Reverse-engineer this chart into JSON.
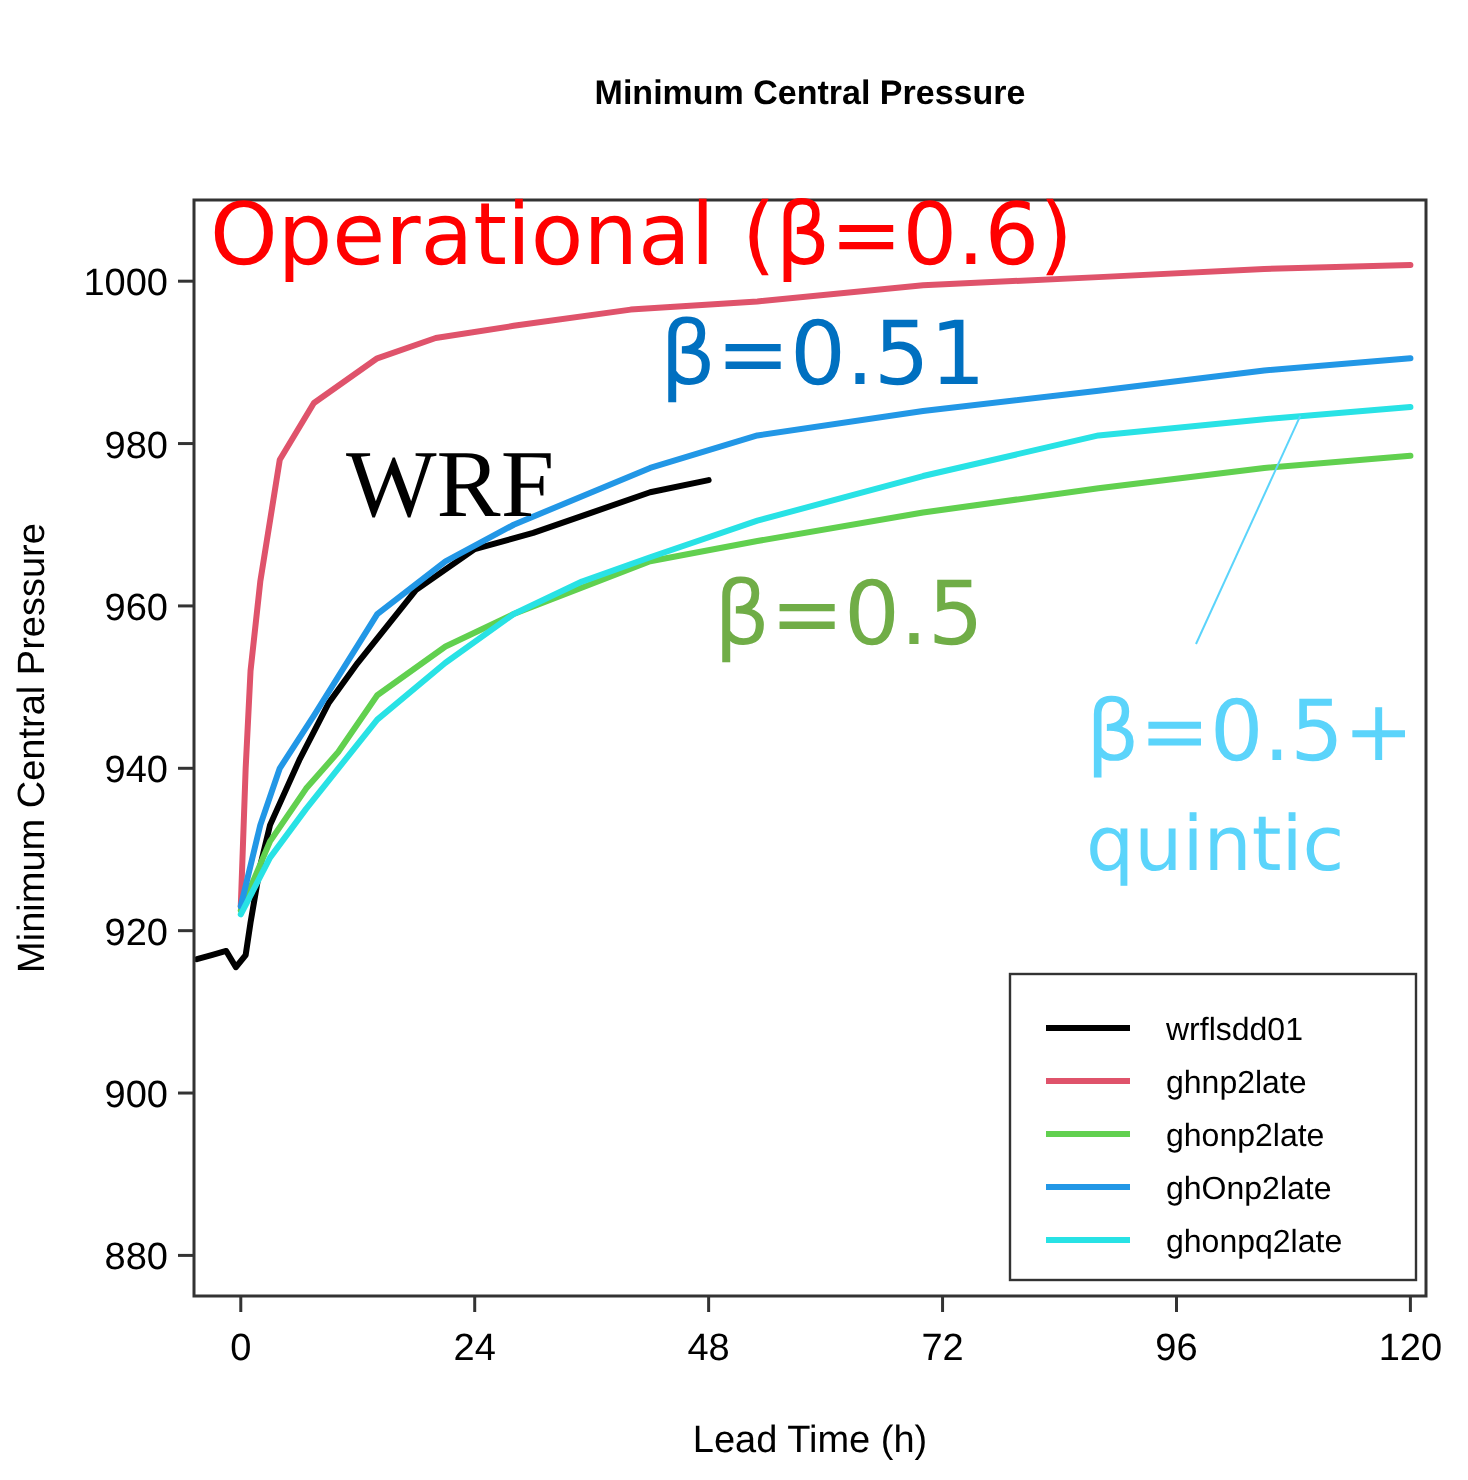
{
  "chart_data": {
    "type": "line",
    "title": "Minimum Central Pressure",
    "xlabel": "Lead Time (h)",
    "ylabel": "Minimum Central Pressure",
    "xlim": [
      -4.8,
      121.6
    ],
    "ylim": [
      875,
      1010
    ],
    "xticks": [
      0,
      24,
      48,
      72,
      96,
      120
    ],
    "yticks": [
      880,
      900,
      920,
      940,
      960,
      980,
      1000
    ],
    "grid": false,
    "legend": "bottom right",
    "line_style": "solid",
    "marker": "none",
    "series": [
      {
        "name": "wrflsdd01",
        "color": "#000000",
        "x": [
          -4.5,
          -3,
          -1.5,
          -0.5,
          0.5,
          1,
          2,
          3,
          6,
          9,
          12,
          18,
          24,
          30,
          36,
          42,
          48
        ],
        "values": [
          916.5,
          917,
          917.5,
          915.5,
          917,
          921,
          928,
          933,
          941,
          948,
          953,
          962,
          967,
          969,
          971.5,
          974,
          975.5
        ]
      },
      {
        "name": "ghnp2late",
        "color": "#df536b",
        "x": [
          0,
          0.5,
          1,
          2,
          4,
          7.5,
          14,
          20,
          28,
          40,
          53,
          70,
          88,
          105,
          120
        ],
        "values": [
          923,
          940,
          952,
          963,
          978,
          985,
          990.5,
          993,
          994.5,
          996.5,
          997.5,
          999.5,
          1000.5,
          1001.5,
          1002
        ]
      },
      {
        "name": "ghonp2late",
        "color": "#61d04f",
        "x": [
          0,
          3,
          6.7,
          10,
          14,
          21,
          28,
          42,
          53,
          70,
          88,
          105,
          120
        ],
        "values": [
          922.5,
          931,
          937.5,
          942,
          949,
          955,
          959,
          965.5,
          968,
          971.5,
          974.5,
          977,
          978.5
        ]
      },
      {
        "name": "ghOnp2late",
        "color": "#2297e6",
        "x": [
          0,
          2,
          4,
          7.5,
          14,
          21,
          28,
          42,
          53,
          70,
          88,
          105,
          120
        ],
        "values": [
          923,
          933,
          940,
          946.5,
          959,
          965.5,
          970,
          977,
          981,
          984,
          986.5,
          989,
          990.5
        ]
      },
      {
        "name": "ghonpq2late",
        "color": "#28e2e5",
        "x": [
          0,
          3,
          6.7,
          14,
          21,
          28,
          35,
          42,
          53,
          70,
          88,
          105,
          120
        ],
        "values": [
          922,
          929,
          935,
          946,
          953,
          959,
          963,
          966,
          970.5,
          976,
          981,
          983,
          984.5
        ]
      }
    ],
    "annotations": [
      "Operational (β=0.6)",
      "β=0.51",
      "WRF",
      "β=0.5",
      {
        "text": "β=0.5+",
        "x": 108.7,
        "y": 983.4
      },
      "quintic"
    ]
  }
}
